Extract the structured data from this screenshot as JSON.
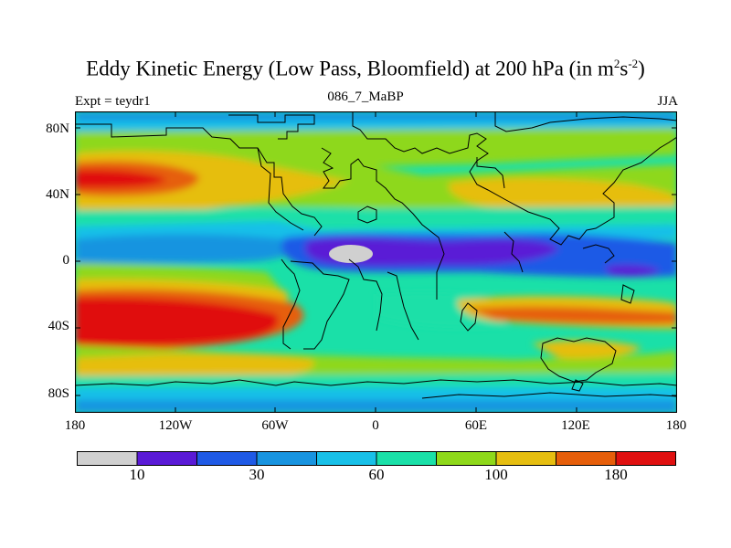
{
  "title": {
    "main": "Eddy Kinetic Energy (Low Pass, Bloomfield) at 200 hPa (in m",
    "sup1": "2",
    "mid": "s",
    "sup2": "-2",
    "end": ")"
  },
  "left_label": "Expt = teydr1",
  "center_label": "086_7_MaBP",
  "right_label": "JJA",
  "lat_ticks": [
    "80N",
    "40N",
    "0",
    "40S",
    "80S"
  ],
  "lon_ticks": [
    "180",
    "120W",
    "60W",
    "0",
    "60E",
    "120E",
    "180"
  ],
  "colorbar": {
    "colors": [
      "#d0d0d0",
      "#5a1ad6",
      "#1f5ae6",
      "#1894e0",
      "#18c0e8",
      "#1ae0a8",
      "#8ed81a",
      "#e6be10",
      "#e65e0a",
      "#e01010"
    ],
    "labels": [
      "10",
      "30",
      "60",
      "100",
      "180"
    ]
  },
  "chart_data": {
    "type": "heatmap",
    "title": "Eddy Kinetic Energy (Low Pass, Bloomfield) at 200 hPa (in m2s-2)",
    "xlabel": "",
    "ylabel": "",
    "xlim": [
      -180,
      180
    ],
    "ylim": [
      -90,
      90
    ],
    "x_ticks": [
      "180",
      "120W",
      "60W",
      "0",
      "60E",
      "120E",
      "180"
    ],
    "y_ticks": [
      "80N",
      "40N",
      "0",
      "40S",
      "80S"
    ],
    "levels": [
      10,
      30,
      60,
      100,
      180
    ],
    "approx_regions": [
      {
        "lon": [
          -178,
          -130
        ],
        "lat": [
          40,
          55
        ],
        "level_band": ">180"
      },
      {
        "lon": [
          -175,
          -80
        ],
        "lat": [
          -50,
          -38
        ],
        "level_band": ">180"
      },
      {
        "lon": [
          -40,
          -15
        ],
        "lat": [
          0,
          8
        ],
        "level_band": "<10"
      },
      {
        "lon": [
          -70,
          110
        ],
        "lat": [
          -5,
          15
        ],
        "level_band": "10-30"
      },
      {
        "lon": [
          100,
          160
        ],
        "lat": [
          -40,
          -30
        ],
        "level_band": "150-180"
      }
    ]
  }
}
